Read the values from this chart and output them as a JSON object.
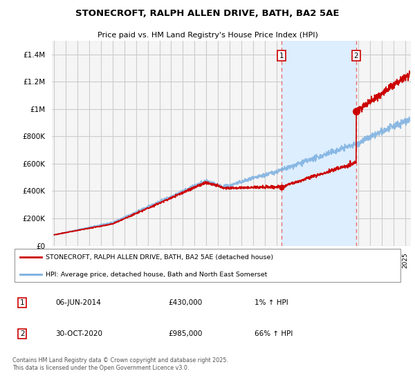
{
  "title": "STONECROFT, RALPH ALLEN DRIVE, BATH, BA2 5AE",
  "subtitle": "Price paid vs. HM Land Registry's House Price Index (HPI)",
  "ylim": [
    0,
    1500000
  ],
  "yticks": [
    0,
    200000,
    400000,
    600000,
    800000,
    1000000,
    1200000,
    1400000
  ],
  "ytick_labels": [
    "£0",
    "£200K",
    "£400K",
    "£600K",
    "£800K",
    "£1M",
    "£1.2M",
    "£1.4M"
  ],
  "background_color": "#ffffff",
  "plot_bg_color": "#f5f5f5",
  "grid_color": "#cccccc",
  "line1_color": "#cc0000",
  "line2_color": "#7aafe0",
  "annotation_box_color": "#cc0000",
  "vline_color": "#e87070",
  "shade_color": "#ddeeff",
  "legend_label1": "STONECROFT, RALPH ALLEN DRIVE, BATH, BA2 5AE (detached house)",
  "legend_label2": "HPI: Average price, detached house, Bath and North East Somerset",
  "note1_num": "1",
  "note1_date": "06-JUN-2014",
  "note1_price": "£430,000",
  "note1_hpi": "1% ↑ HPI",
  "note2_num": "2",
  "note2_date": "30-OCT-2020",
  "note2_price": "£985,000",
  "note2_hpi": "66% ↑ HPI",
  "footer": "Contains HM Land Registry data © Crown copyright and database right 2025.\nThis data is licensed under the Open Government Licence v3.0.",
  "vline1_x": 2014.43,
  "vline2_x": 2020.83,
  "sale1_y": 430000,
  "sale2_y": 985000,
  "xmin": 1994.8,
  "xmax": 2025.5
}
